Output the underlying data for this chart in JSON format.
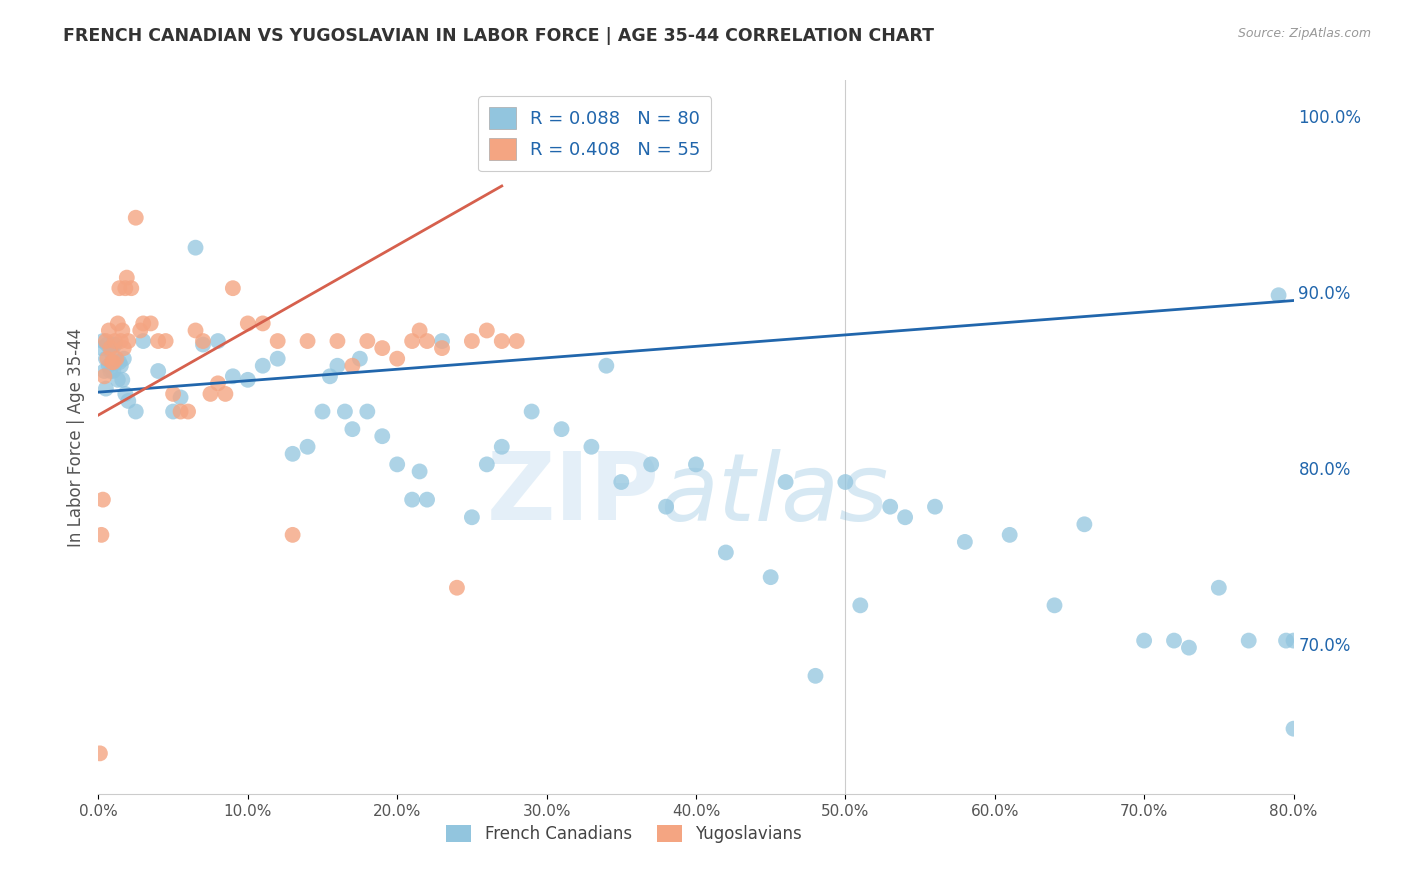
{
  "title": "FRENCH CANADIAN VS YUGOSLAVIAN IN LABOR FORCE | AGE 35-44 CORRELATION CHART",
  "source": "Source: ZipAtlas.com",
  "ylabel": "In Labor Force | Age 35-44",
  "legend_labels": [
    "French Canadians",
    "Yugoslavians"
  ],
  "R_blue": 0.088,
  "N_blue": 80,
  "R_pink": 0.408,
  "N_pink": 55,
  "blue_color": "#92c5de",
  "pink_color": "#f4a582",
  "blue_line_color": "#2166ac",
  "pink_line_color": "#d6604d",
  "xlim": [
    0.0,
    0.8
  ],
  "ylim": [
    0.615,
    1.02
  ],
  "yticks": [
    0.7,
    0.8,
    0.9,
    1.0
  ],
  "xticks": [
    0.0,
    0.1,
    0.2,
    0.3,
    0.4,
    0.5,
    0.6,
    0.7,
    0.8
  ],
  "blue_x": [
    0.002,
    0.003,
    0.004,
    0.005,
    0.005,
    0.006,
    0.007,
    0.008,
    0.009,
    0.01,
    0.01,
    0.011,
    0.012,
    0.013,
    0.014,
    0.015,
    0.016,
    0.017,
    0.018,
    0.02,
    0.025,
    0.03,
    0.04,
    0.05,
    0.055,
    0.065,
    0.07,
    0.08,
    0.09,
    0.1,
    0.11,
    0.12,
    0.13,
    0.14,
    0.15,
    0.155,
    0.16,
    0.165,
    0.17,
    0.175,
    0.18,
    0.19,
    0.2,
    0.21,
    0.215,
    0.22,
    0.23,
    0.25,
    0.26,
    0.27,
    0.29,
    0.31,
    0.33,
    0.34,
    0.35,
    0.37,
    0.38,
    0.4,
    0.42,
    0.45,
    0.46,
    0.48,
    0.5,
    0.51,
    0.53,
    0.54,
    0.56,
    0.58,
    0.61,
    0.64,
    0.66,
    0.7,
    0.72,
    0.73,
    0.75,
    0.77,
    0.79,
    0.795,
    0.8,
    0.8
  ],
  "blue_y": [
    0.868,
    0.872,
    0.855,
    0.845,
    0.862,
    0.87,
    0.858,
    0.855,
    0.865,
    0.87,
    0.855,
    0.87,
    0.86,
    0.85,
    0.86,
    0.858,
    0.85,
    0.862,
    0.842,
    0.838,
    0.832,
    0.872,
    0.855,
    0.832,
    0.84,
    0.925,
    0.87,
    0.872,
    0.852,
    0.85,
    0.858,
    0.862,
    0.808,
    0.812,
    0.832,
    0.852,
    0.858,
    0.832,
    0.822,
    0.862,
    0.832,
    0.818,
    0.802,
    0.782,
    0.798,
    0.782,
    0.872,
    0.772,
    0.802,
    0.812,
    0.832,
    0.822,
    0.812,
    0.858,
    0.792,
    0.802,
    0.778,
    0.802,
    0.752,
    0.738,
    0.792,
    0.682,
    0.792,
    0.722,
    0.778,
    0.772,
    0.778,
    0.758,
    0.762,
    0.722,
    0.768,
    0.702,
    0.702,
    0.698,
    0.732,
    0.702,
    0.898,
    0.702,
    0.652,
    0.702
  ],
  "pink_x": [
    0.001,
    0.002,
    0.003,
    0.004,
    0.005,
    0.006,
    0.007,
    0.008,
    0.009,
    0.01,
    0.011,
    0.012,
    0.013,
    0.014,
    0.015,
    0.016,
    0.017,
    0.018,
    0.019,
    0.02,
    0.022,
    0.025,
    0.028,
    0.03,
    0.035,
    0.04,
    0.045,
    0.05,
    0.055,
    0.06,
    0.065,
    0.07,
    0.075,
    0.08,
    0.085,
    0.09,
    0.1,
    0.11,
    0.12,
    0.13,
    0.14,
    0.16,
    0.17,
    0.18,
    0.19,
    0.2,
    0.21,
    0.215,
    0.22,
    0.23,
    0.24,
    0.25,
    0.26,
    0.27,
    0.28
  ],
  "pink_y": [
    0.638,
    0.762,
    0.782,
    0.852,
    0.872,
    0.862,
    0.878,
    0.868,
    0.86,
    0.86,
    0.872,
    0.862,
    0.882,
    0.902,
    0.872,
    0.878,
    0.868,
    0.902,
    0.908,
    0.872,
    0.902,
    0.942,
    0.878,
    0.882,
    0.882,
    0.872,
    0.872,
    0.842,
    0.832,
    0.832,
    0.878,
    0.872,
    0.842,
    0.848,
    0.842,
    0.902,
    0.882,
    0.882,
    0.872,
    0.762,
    0.872,
    0.872,
    0.858,
    0.872,
    0.868,
    0.862,
    0.872,
    0.878,
    0.872,
    0.868,
    0.732,
    0.872,
    0.878,
    0.872,
    0.872
  ],
  "blue_trend_x": [
    0.0,
    0.8
  ],
  "blue_trend_y": [
    0.843,
    0.895
  ],
  "pink_trend_x": [
    0.0,
    0.27
  ],
  "pink_trend_y": [
    0.83,
    0.96
  ],
  "watermark_zip": "ZIP",
  "watermark_atlas": "atlas",
  "background_color": "#ffffff",
  "grid_color": "#d0d0d0"
}
